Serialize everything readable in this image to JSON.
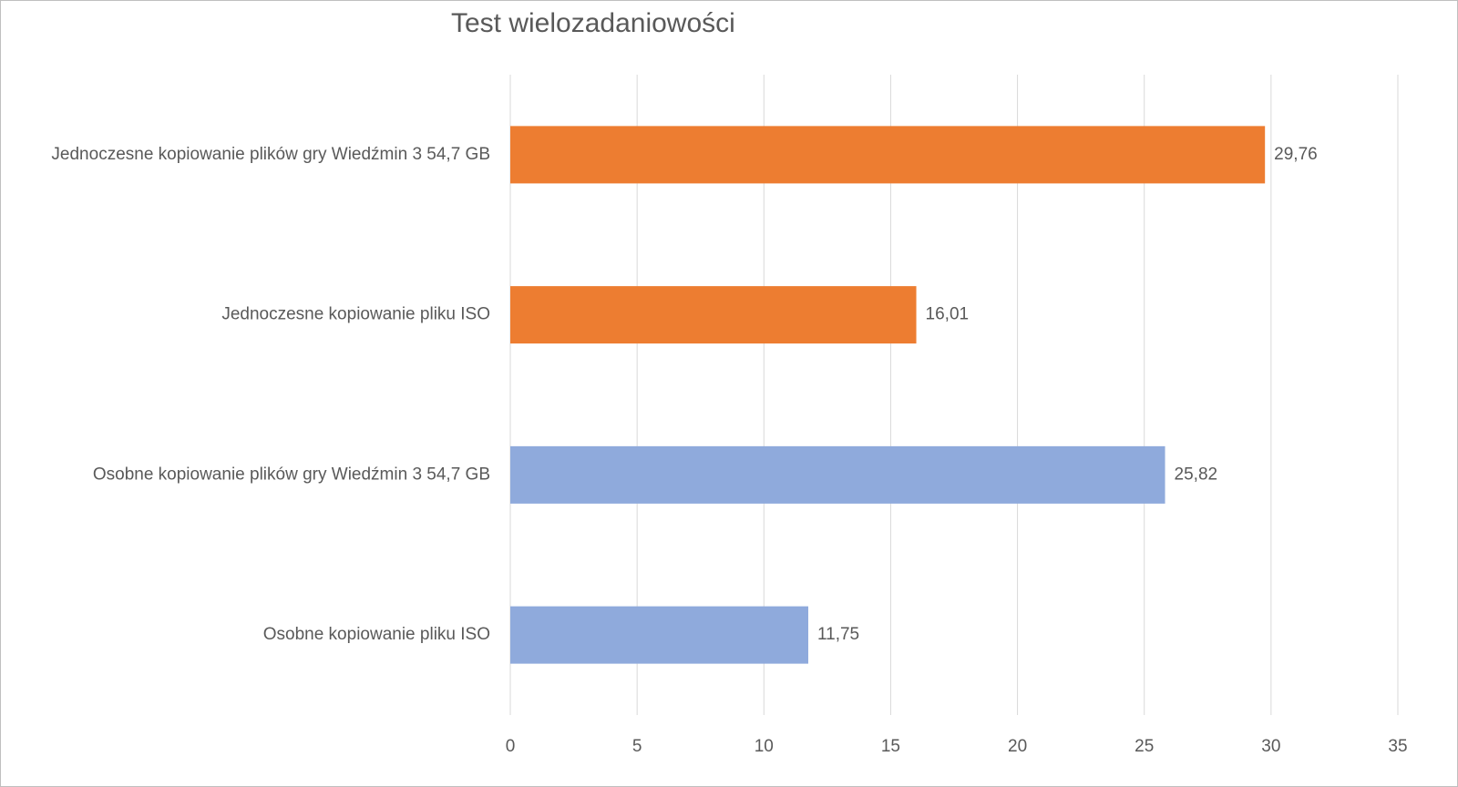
{
  "chart_data": {
    "type": "hbar",
    "title": "Test wielozadaniowości",
    "categories": [
      "Jednoczesne kopiowanie plików gry Wiedźmin 3 54,7 GB",
      "Jednoczesne kopiowanie pliku ISO",
      "Osobne kopiowanie plików gry Wiedźmin 3 54,7 GB",
      "Osobne kopiowanie pliku ISO"
    ],
    "values": [
      29.76,
      16.01,
      25.82,
      11.75
    ],
    "value_labels": [
      "29,76",
      "16,01",
      "25,82",
      "11,75"
    ],
    "colors": [
      "#ed7d31",
      "#ed7d31",
      "#8faadc",
      "#8faadc"
    ],
    "xlim": [
      0,
      35
    ],
    "xticks": [
      0,
      5,
      10,
      15,
      20,
      25,
      30,
      35
    ],
    "grid": true
  }
}
